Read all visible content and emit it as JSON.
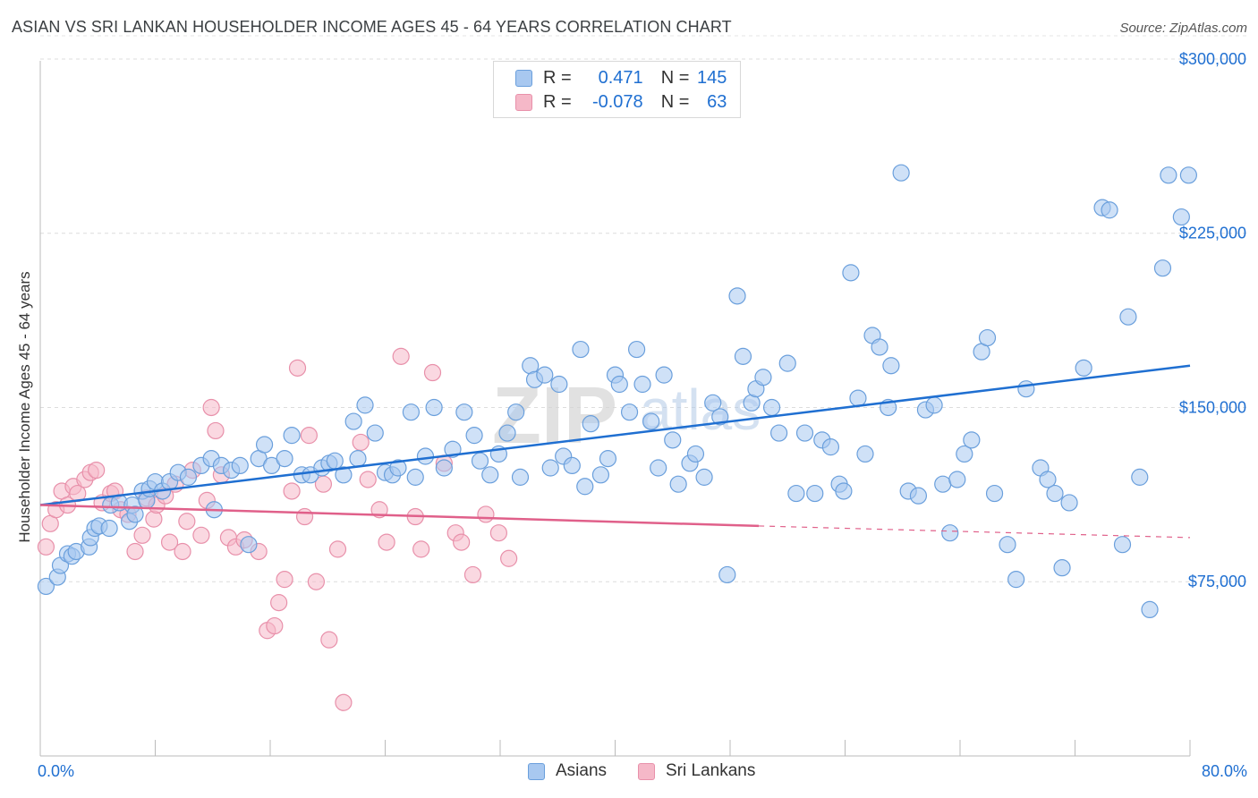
{
  "title": "ASIAN VS SRI LANKAN HOUSEHOLDER INCOME AGES 45 - 64 YEARS CORRELATION CHART",
  "source": "Source: ZipAtlas.com",
  "watermark": {
    "part1": "ZIP",
    "part2": "atlas"
  },
  "legend": {
    "r_label": "R =",
    "n_label": "N =",
    "series": [
      {
        "r": "0.471",
        "n": "145"
      },
      {
        "r": "-0.078",
        "n": "63"
      }
    ]
  },
  "bottom_legend": [
    "Asians",
    "Sri Lankans"
  ],
  "colors": {
    "asian_fill": "#a8c8f0",
    "asian_stroke": "#6a9fdc",
    "asian_line": "#1f6fd1",
    "srilankan_fill": "#f5b8c8",
    "srilankan_stroke": "#e890aa",
    "srilankan_line": "#e0608a",
    "tick_text": "#1f6fd1"
  },
  "chart_data": {
    "type": "scatter",
    "title": "ASIAN VS SRI LANKAN HOUSEHOLDER INCOME AGES 45 - 64 YEARS CORRELATION CHART",
    "xlabel": "",
    "ylabel": "Householder Income Ages 45 - 64 years",
    "xlim": [
      0,
      80
    ],
    "ylim": [
      0,
      310000
    ],
    "x_tick_labels": [
      "0.0%",
      "80.0%"
    ],
    "y_ticks": [
      {
        "value": 75000,
        "label": "$75,000"
      },
      {
        "value": 150000,
        "label": "$150,000"
      },
      {
        "value": 225000,
        "label": "$225,000"
      },
      {
        "value": 300000,
        "label": "$300,000"
      }
    ],
    "series": [
      {
        "name": "Asians",
        "r": 0.471,
        "n": 145,
        "trend": {
          "x0": 0,
          "y0": 108000,
          "x1": 80,
          "y1": 168000
        },
        "points": [
          [
            0.4,
            73000
          ],
          [
            1.2,
            77000
          ],
          [
            1.4,
            82000
          ],
          [
            1.9,
            87000
          ],
          [
            2.2,
            86000
          ],
          [
            2.5,
            88000
          ],
          [
            3.4,
            90000
          ],
          [
            3.5,
            94000
          ],
          [
            3.8,
            98000
          ],
          [
            4.1,
            99000
          ],
          [
            4.8,
            98000
          ],
          [
            4.9,
            108000
          ],
          [
            5.5,
            109000
          ],
          [
            6.2,
            101000
          ],
          [
            6.4,
            108000
          ],
          [
            6.6,
            104000
          ],
          [
            7.1,
            114000
          ],
          [
            7.4,
            110000
          ],
          [
            7.6,
            115000
          ],
          [
            8.0,
            118000
          ],
          [
            8.5,
            114000
          ],
          [
            9.0,
            118000
          ],
          [
            9.6,
            122000
          ],
          [
            10.3,
            120000
          ],
          [
            11.2,
            125000
          ],
          [
            11.9,
            128000
          ],
          [
            12.1,
            106000
          ],
          [
            12.6,
            125000
          ],
          [
            13.3,
            123000
          ],
          [
            13.9,
            125000
          ],
          [
            14.5,
            91000
          ],
          [
            15.2,
            128000
          ],
          [
            15.6,
            134000
          ],
          [
            16.1,
            125000
          ],
          [
            17.0,
            128000
          ],
          [
            17.5,
            138000
          ],
          [
            18.2,
            121000
          ],
          [
            18.8,
            121000
          ],
          [
            19.6,
            124000
          ],
          [
            20.1,
            126000
          ],
          [
            20.5,
            127000
          ],
          [
            21.1,
            121000
          ],
          [
            21.8,
            144000
          ],
          [
            22.1,
            128000
          ],
          [
            22.6,
            151000
          ],
          [
            23.3,
            139000
          ],
          [
            24.0,
            122000
          ],
          [
            24.5,
            121000
          ],
          [
            24.9,
            124000
          ],
          [
            25.8,
            148000
          ],
          [
            26.1,
            120000
          ],
          [
            26.8,
            129000
          ],
          [
            27.4,
            150000
          ],
          [
            28.1,
            124000
          ],
          [
            28.7,
            132000
          ],
          [
            29.5,
            148000
          ],
          [
            30.2,
            138000
          ],
          [
            30.6,
            127000
          ],
          [
            31.3,
            121000
          ],
          [
            31.9,
            130000
          ],
          [
            32.5,
            139000
          ],
          [
            33.1,
            148000
          ],
          [
            33.4,
            120000
          ],
          [
            34.1,
            168000
          ],
          [
            34.4,
            162000
          ],
          [
            35.1,
            164000
          ],
          [
            35.5,
            124000
          ],
          [
            36.1,
            160000
          ],
          [
            36.4,
            129000
          ],
          [
            37.0,
            125000
          ],
          [
            37.6,
            175000
          ],
          [
            37.9,
            116000
          ],
          [
            38.3,
            143000
          ],
          [
            39.0,
            121000
          ],
          [
            39.5,
            128000
          ],
          [
            40.0,
            164000
          ],
          [
            40.3,
            160000
          ],
          [
            41.0,
            148000
          ],
          [
            41.5,
            175000
          ],
          [
            41.9,
            160000
          ],
          [
            42.5,
            144000
          ],
          [
            43.0,
            124000
          ],
          [
            43.4,
            164000
          ],
          [
            44.0,
            136000
          ],
          [
            44.4,
            117000
          ],
          [
            45.2,
            126000
          ],
          [
            45.6,
            130000
          ],
          [
            46.2,
            120000
          ],
          [
            46.8,
            152000
          ],
          [
            47.3,
            146000
          ],
          [
            47.8,
            78000
          ],
          [
            48.5,
            198000
          ],
          [
            48.9,
            172000
          ],
          [
            49.5,
            152000
          ],
          [
            49.8,
            158000
          ],
          [
            50.3,
            163000
          ],
          [
            50.9,
            150000
          ],
          [
            51.4,
            139000
          ],
          [
            52.0,
            169000
          ],
          [
            52.6,
            113000
          ],
          [
            53.2,
            139000
          ],
          [
            53.9,
            113000
          ],
          [
            54.4,
            136000
          ],
          [
            55.0,
            133000
          ],
          [
            55.6,
            117000
          ],
          [
            55.9,
            114000
          ],
          [
            56.4,
            208000
          ],
          [
            56.9,
            154000
          ],
          [
            57.4,
            130000
          ],
          [
            57.9,
            181000
          ],
          [
            58.4,
            176000
          ],
          [
            59.0,
            150000
          ],
          [
            59.2,
            168000
          ],
          [
            59.9,
            251000
          ],
          [
            60.4,
            114000
          ],
          [
            61.1,
            112000
          ],
          [
            61.6,
            149000
          ],
          [
            62.2,
            151000
          ],
          [
            62.8,
            117000
          ],
          [
            63.3,
            96000
          ],
          [
            63.8,
            119000
          ],
          [
            64.3,
            130000
          ],
          [
            64.8,
            136000
          ],
          [
            65.5,
            174000
          ],
          [
            65.9,
            180000
          ],
          [
            66.4,
            113000
          ],
          [
            67.3,
            91000
          ],
          [
            67.9,
            76000
          ],
          [
            68.6,
            158000
          ],
          [
            69.6,
            124000
          ],
          [
            70.1,
            119000
          ],
          [
            70.6,
            113000
          ],
          [
            71.1,
            81000
          ],
          [
            71.6,
            109000
          ],
          [
            72.6,
            167000
          ],
          [
            73.9,
            236000
          ],
          [
            74.4,
            235000
          ],
          [
            75.3,
            91000
          ],
          [
            75.7,
            189000
          ],
          [
            76.5,
            120000
          ],
          [
            77.2,
            63000
          ],
          [
            78.1,
            210000
          ],
          [
            78.5,
            250000
          ],
          [
            79.4,
            232000
          ],
          [
            79.9,
            250000
          ]
        ]
      },
      {
        "name": "Sri Lankans",
        "r": -0.078,
        "n": 63,
        "trend": {
          "x0": 0,
          "y0": 108000,
          "x1": 50,
          "y1": 99000,
          "dashed_to_x": 80,
          "dashed_to_y": 94000
        },
        "points": [
          [
            0.4,
            90000
          ],
          [
            0.7,
            100000
          ],
          [
            1.1,
            106000
          ],
          [
            1.5,
            114000
          ],
          [
            1.9,
            108000
          ],
          [
            2.3,
            116000
          ],
          [
            2.6,
            113000
          ],
          [
            3.1,
            119000
          ],
          [
            3.5,
            122000
          ],
          [
            3.9,
            123000
          ],
          [
            4.3,
            109000
          ],
          [
            4.9,
            113000
          ],
          [
            5.2,
            114000
          ],
          [
            5.6,
            106000
          ],
          [
            6.1,
            104000
          ],
          [
            6.6,
            88000
          ],
          [
            7.1,
            95000
          ],
          [
            7.4,
            111000
          ],
          [
            7.9,
            102000
          ],
          [
            8.1,
            108000
          ],
          [
            8.7,
            112000
          ],
          [
            9.0,
            92000
          ],
          [
            9.4,
            117000
          ],
          [
            9.9,
            88000
          ],
          [
            10.2,
            101000
          ],
          [
            10.6,
            123000
          ],
          [
            11.2,
            95000
          ],
          [
            11.6,
            110000
          ],
          [
            11.9,
            150000
          ],
          [
            12.2,
            140000
          ],
          [
            12.6,
            121000
          ],
          [
            13.1,
            94000
          ],
          [
            13.6,
            90000
          ],
          [
            14.2,
            93000
          ],
          [
            15.2,
            88000
          ],
          [
            15.8,
            54000
          ],
          [
            16.3,
            56000
          ],
          [
            16.6,
            66000
          ],
          [
            17.0,
            76000
          ],
          [
            17.5,
            114000
          ],
          [
            17.9,
            167000
          ],
          [
            18.4,
            103000
          ],
          [
            18.7,
            138000
          ],
          [
            19.2,
            75000
          ],
          [
            19.7,
            117000
          ],
          [
            20.1,
            50000
          ],
          [
            20.7,
            89000
          ],
          [
            21.1,
            23000
          ],
          [
            22.3,
            135000
          ],
          [
            22.8,
            119000
          ],
          [
            23.6,
            106000
          ],
          [
            24.1,
            92000
          ],
          [
            25.1,
            172000
          ],
          [
            26.1,
            103000
          ],
          [
            26.5,
            89000
          ],
          [
            27.3,
            165000
          ],
          [
            28.1,
            126000
          ],
          [
            28.9,
            96000
          ],
          [
            29.3,
            92000
          ],
          [
            30.1,
            78000
          ],
          [
            31.0,
            104000
          ],
          [
            31.9,
            96000
          ],
          [
            32.6,
            85000
          ]
        ]
      }
    ]
  }
}
